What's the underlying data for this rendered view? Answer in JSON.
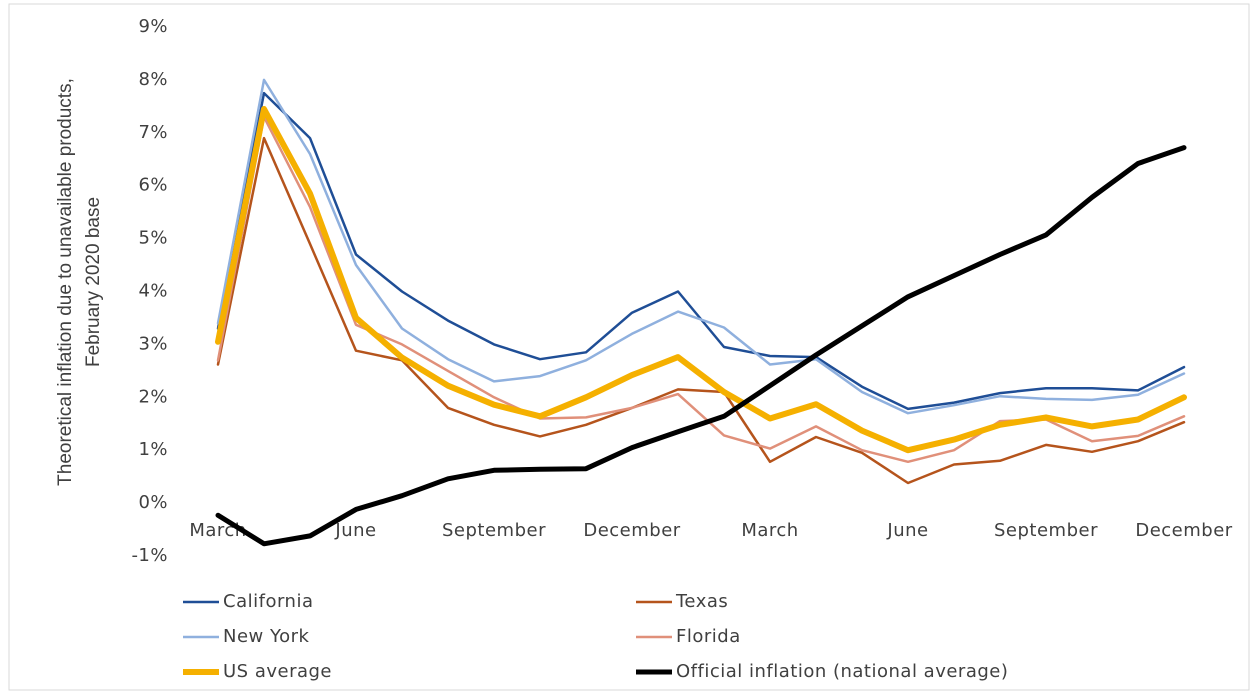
{
  "chart_data": {
    "type": "line",
    "y_label": [
      "Theoretical inflation due to unavailable products,",
      "February 2020 base"
    ],
    "categories": [
      "March",
      null,
      null,
      "June",
      null,
      null,
      "September",
      null,
      null,
      "December",
      null,
      null,
      "March",
      null,
      null,
      "June",
      null,
      null,
      "September",
      null,
      null,
      "December"
    ],
    "ylim": [
      -1,
      9
    ],
    "yticks": [
      {
        "value": -1,
        "label": "-1%"
      },
      {
        "value": 0,
        "label": "0%"
      },
      {
        "value": 1,
        "label": "1%"
      },
      {
        "value": 2,
        "label": "2%"
      },
      {
        "value": 3,
        "label": "3%"
      },
      {
        "value": 4,
        "label": "4%"
      },
      {
        "value": 5,
        "label": "5%"
      },
      {
        "value": 6,
        "label": "6%"
      },
      {
        "value": 7,
        "label": "7%"
      },
      {
        "value": 8,
        "label": "8%"
      },
      {
        "value": 9,
        "label": "9%"
      }
    ],
    "grid": false,
    "legend_position": "bottom",
    "series": [
      {
        "name": "California",
        "color": "#1f4e96",
        "width": 2.5,
        "values": [
          3.3,
          7.75,
          6.9,
          4.7,
          4.0,
          3.45,
          3.0,
          2.72,
          2.85,
          3.6,
          4.0,
          2.95,
          2.78,
          2.76,
          2.2,
          1.78,
          1.9,
          2.08,
          2.17,
          2.17,
          2.13,
          2.57
        ]
      },
      {
        "name": "Texas",
        "color": "#b5541c",
        "width": 2.5,
        "values": [
          2.62,
          6.9,
          4.9,
          2.88,
          2.7,
          1.8,
          1.48,
          1.26,
          1.48,
          1.8,
          2.15,
          2.1,
          0.78,
          1.25,
          0.95,
          0.38,
          0.73,
          0.8,
          1.1,
          0.97,
          1.17,
          1.53
        ]
      },
      {
        "name": "New York",
        "color": "#8fb0de",
        "width": 2.5,
        "values": [
          3.4,
          8.0,
          6.6,
          4.5,
          3.3,
          2.72,
          2.3,
          2.4,
          2.7,
          3.2,
          3.62,
          3.32,
          2.62,
          2.72,
          2.1,
          1.7,
          1.85,
          2.02,
          1.97,
          1.95,
          2.05,
          2.45
        ]
      },
      {
        "name": "Florida",
        "color": "#e0907a",
        "width": 2.5,
        "values": [
          2.7,
          7.3,
          5.6,
          3.37,
          3.0,
          2.5,
          2.0,
          1.6,
          1.62,
          1.8,
          2.06,
          1.28,
          1.03,
          1.45,
          1.0,
          0.78,
          1.0,
          1.55,
          1.58,
          1.17,
          1.27,
          1.64
        ]
      },
      {
        "name": "US average",
        "color": "#f5b000",
        "width": 6,
        "values": [
          3.05,
          7.45,
          5.85,
          3.5,
          2.75,
          2.22,
          1.86,
          1.64,
          2.0,
          2.42,
          2.76,
          2.1,
          1.6,
          1.87,
          1.37,
          1.0,
          1.2,
          1.48,
          1.62,
          1.45,
          1.58,
          2.0
        ]
      },
      {
        "name": "Official inflation (national average)",
        "color": "#000000",
        "width": 5,
        "values": [
          -0.23,
          -0.77,
          -0.62,
          -0.12,
          0.14,
          0.46,
          0.62,
          0.64,
          0.65,
          1.05,
          1.35,
          1.64,
          2.22,
          2.8,
          3.35,
          3.9,
          4.3,
          4.7,
          5.07,
          5.78,
          6.42,
          6.72
        ]
      }
    ]
  }
}
